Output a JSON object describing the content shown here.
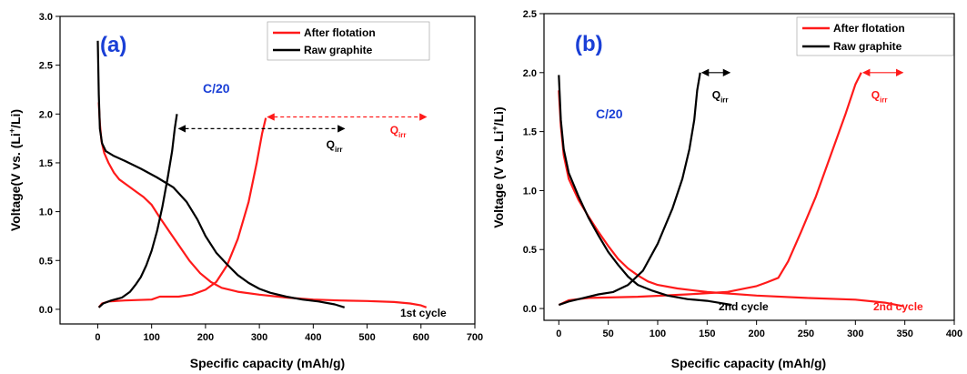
{
  "colors": {
    "after_flotation": "#ff1a1a",
    "raw_graphite": "#000000",
    "annotation_blue": "#1a3fd6"
  },
  "chart_data": [
    {
      "type": "line",
      "panel_label": "(a)",
      "rate_label": "C/20",
      "cycle_label": "1st cycle",
      "xlabel": "Specific capacity (mAh/g)",
      "ylabel_prefix": "Voltage(V vs. (Li",
      "ylabel_sup": "+",
      "ylabel_suffix": "/Li)",
      "xlim": [
        -70,
        700
      ],
      "ylim": [
        -0.15,
        3.0
      ],
      "xticks": [
        0,
        100,
        200,
        300,
        400,
        500,
        600,
        700
      ],
      "yticks": [
        0.0,
        0.5,
        1.0,
        1.5,
        2.0,
        2.5,
        3.0
      ],
      "legend_position": "top-right",
      "qirr": {
        "main": "Q",
        "sub": "irr"
      },
      "series": [
        {
          "name": "After flotation",
          "color": "#ff1a1a",
          "discharge": [
            [
              2,
              2.12
            ],
            [
              4,
              1.9
            ],
            [
              7,
              1.72
            ],
            [
              12,
              1.6
            ],
            [
              20,
              1.5
            ],
            [
              30,
              1.4
            ],
            [
              40,
              1.33
            ],
            [
              55,
              1.27
            ],
            [
              70,
              1.21
            ],
            [
              85,
              1.15
            ],
            [
              100,
              1.07
            ],
            [
              115,
              0.94
            ],
            [
              130,
              0.82
            ],
            [
              150,
              0.66
            ],
            [
              170,
              0.5
            ],
            [
              190,
              0.37
            ],
            [
              210,
              0.28
            ],
            [
              230,
              0.22
            ],
            [
              260,
              0.18
            ],
            [
              300,
              0.15
            ],
            [
              350,
              0.12
            ],
            [
              400,
              0.1
            ],
            [
              450,
              0.09
            ],
            [
              500,
              0.085
            ],
            [
              550,
              0.075
            ],
            [
              580,
              0.06
            ],
            [
              600,
              0.04
            ],
            [
              610,
              0.02
            ]
          ],
          "charge": [
            [
              2,
              0.02
            ],
            [
              8,
              0.06
            ],
            [
              20,
              0.08
            ],
            [
              50,
              0.09
            ],
            [
              100,
              0.1
            ],
            [
              115,
              0.13
            ],
            [
              150,
              0.13
            ],
            [
              175,
              0.15
            ],
            [
              200,
              0.2
            ],
            [
              220,
              0.28
            ],
            [
              240,
              0.45
            ],
            [
              260,
              0.72
            ],
            [
              280,
              1.1
            ],
            [
              295,
              1.5
            ],
            [
              305,
              1.8
            ],
            [
              312,
              1.96
            ]
          ]
        },
        {
          "name": "Raw graphite",
          "color": "#000000",
          "discharge": [
            [
              0,
              2.75
            ],
            [
              2,
              2.2
            ],
            [
              4,
              1.85
            ],
            [
              8,
              1.7
            ],
            [
              15,
              1.62
            ],
            [
              30,
              1.57
            ],
            [
              50,
              1.52
            ],
            [
              80,
              1.44
            ],
            [
              110,
              1.35
            ],
            [
              140,
              1.25
            ],
            [
              165,
              1.1
            ],
            [
              185,
              0.92
            ],
            [
              200,
              0.75
            ],
            [
              220,
              0.58
            ],
            [
              240,
              0.46
            ],
            [
              260,
              0.35
            ],
            [
              280,
              0.27
            ],
            [
              300,
              0.21
            ],
            [
              320,
              0.17
            ],
            [
              350,
              0.13
            ],
            [
              380,
              0.1
            ],
            [
              410,
              0.08
            ],
            [
              440,
              0.05
            ],
            [
              458,
              0.02
            ]
          ],
          "charge": [
            [
              2,
              0.02
            ],
            [
              10,
              0.06
            ],
            [
              25,
              0.09
            ],
            [
              45,
              0.12
            ],
            [
              60,
              0.18
            ],
            [
              70,
              0.25
            ],
            [
              80,
              0.33
            ],
            [
              90,
              0.45
            ],
            [
              100,
              0.6
            ],
            [
              110,
              0.8
            ],
            [
              120,
              1.05
            ],
            [
              130,
              1.35
            ],
            [
              138,
              1.62
            ],
            [
              143,
              1.85
            ],
            [
              147,
              2.0
            ]
          ]
        }
      ]
    },
    {
      "type": "line",
      "panel_label": "(b)",
      "rate_label": "C/20",
      "cycle_label_black": "2nd cycle",
      "cycle_label_red": "2nd cycle",
      "xlabel": "Specific capacity (mAh/g)",
      "ylabel_prefix": "Voltage (V vs. Li",
      "ylabel_sup": "+",
      "ylabel_suffix": "/Li)",
      "xlim": [
        -15,
        400
      ],
      "ylim": [
        -0.1,
        2.5
      ],
      "xticks": [
        0,
        50,
        100,
        150,
        200,
        250,
        300,
        350,
        400
      ],
      "yticks": [
        0.0,
        0.5,
        1.0,
        1.5,
        2.0,
        2.5
      ],
      "legend_position": "top-right",
      "qirr": {
        "main": "Q",
        "sub": "irr"
      },
      "series": [
        {
          "name": "After flotation",
          "color": "#ff1a1a",
          "discharge": [
            [
              0,
              1.85
            ],
            [
              2,
              1.55
            ],
            [
              5,
              1.3
            ],
            [
              10,
              1.1
            ],
            [
              20,
              0.92
            ],
            [
              30,
              0.78
            ],
            [
              40,
              0.65
            ],
            [
              50,
              0.53
            ],
            [
              60,
              0.42
            ],
            [
              70,
              0.34
            ],
            [
              80,
              0.28
            ],
            [
              90,
              0.23
            ],
            [
              100,
              0.2
            ],
            [
              120,
              0.17
            ],
            [
              150,
              0.14
            ],
            [
              200,
              0.11
            ],
            [
              250,
              0.09
            ],
            [
              300,
              0.075
            ],
            [
              330,
              0.05
            ],
            [
              348,
              0.02
            ]
          ],
          "charge": [
            [
              0,
              0.03
            ],
            [
              10,
              0.07
            ],
            [
              30,
              0.09
            ],
            [
              80,
              0.1
            ],
            [
              130,
              0.12
            ],
            [
              170,
              0.14
            ],
            [
              200,
              0.19
            ],
            [
              210,
              0.22
            ],
            [
              222,
              0.26
            ],
            [
              232,
              0.4
            ],
            [
              245,
              0.65
            ],
            [
              260,
              0.95
            ],
            [
              275,
              1.3
            ],
            [
              290,
              1.65
            ],
            [
              300,
              1.9
            ],
            [
              306,
              2.0
            ]
          ]
        },
        {
          "name": "Raw graphite",
          "color": "#000000",
          "discharge": [
            [
              0,
              1.98
            ],
            [
              2,
              1.6
            ],
            [
              5,
              1.35
            ],
            [
              10,
              1.15
            ],
            [
              20,
              0.95
            ],
            [
              30,
              0.77
            ],
            [
              40,
              0.62
            ],
            [
              50,
              0.48
            ],
            [
              60,
              0.37
            ],
            [
              70,
              0.27
            ],
            [
              80,
              0.2
            ],
            [
              95,
              0.15
            ],
            [
              110,
              0.11
            ],
            [
              130,
              0.08
            ],
            [
              150,
              0.065
            ],
            [
              175,
              0.03
            ]
          ],
          "charge": [
            [
              0,
              0.03
            ],
            [
              10,
              0.06
            ],
            [
              25,
              0.09
            ],
            [
              40,
              0.12
            ],
            [
              55,
              0.14
            ],
            [
              70,
              0.2
            ],
            [
              85,
              0.32
            ],
            [
              100,
              0.55
            ],
            [
              115,
              0.85
            ],
            [
              125,
              1.1
            ],
            [
              132,
              1.35
            ],
            [
              137,
              1.6
            ],
            [
              140,
              1.85
            ],
            [
              143,
              2.0
            ]
          ]
        }
      ]
    }
  ]
}
